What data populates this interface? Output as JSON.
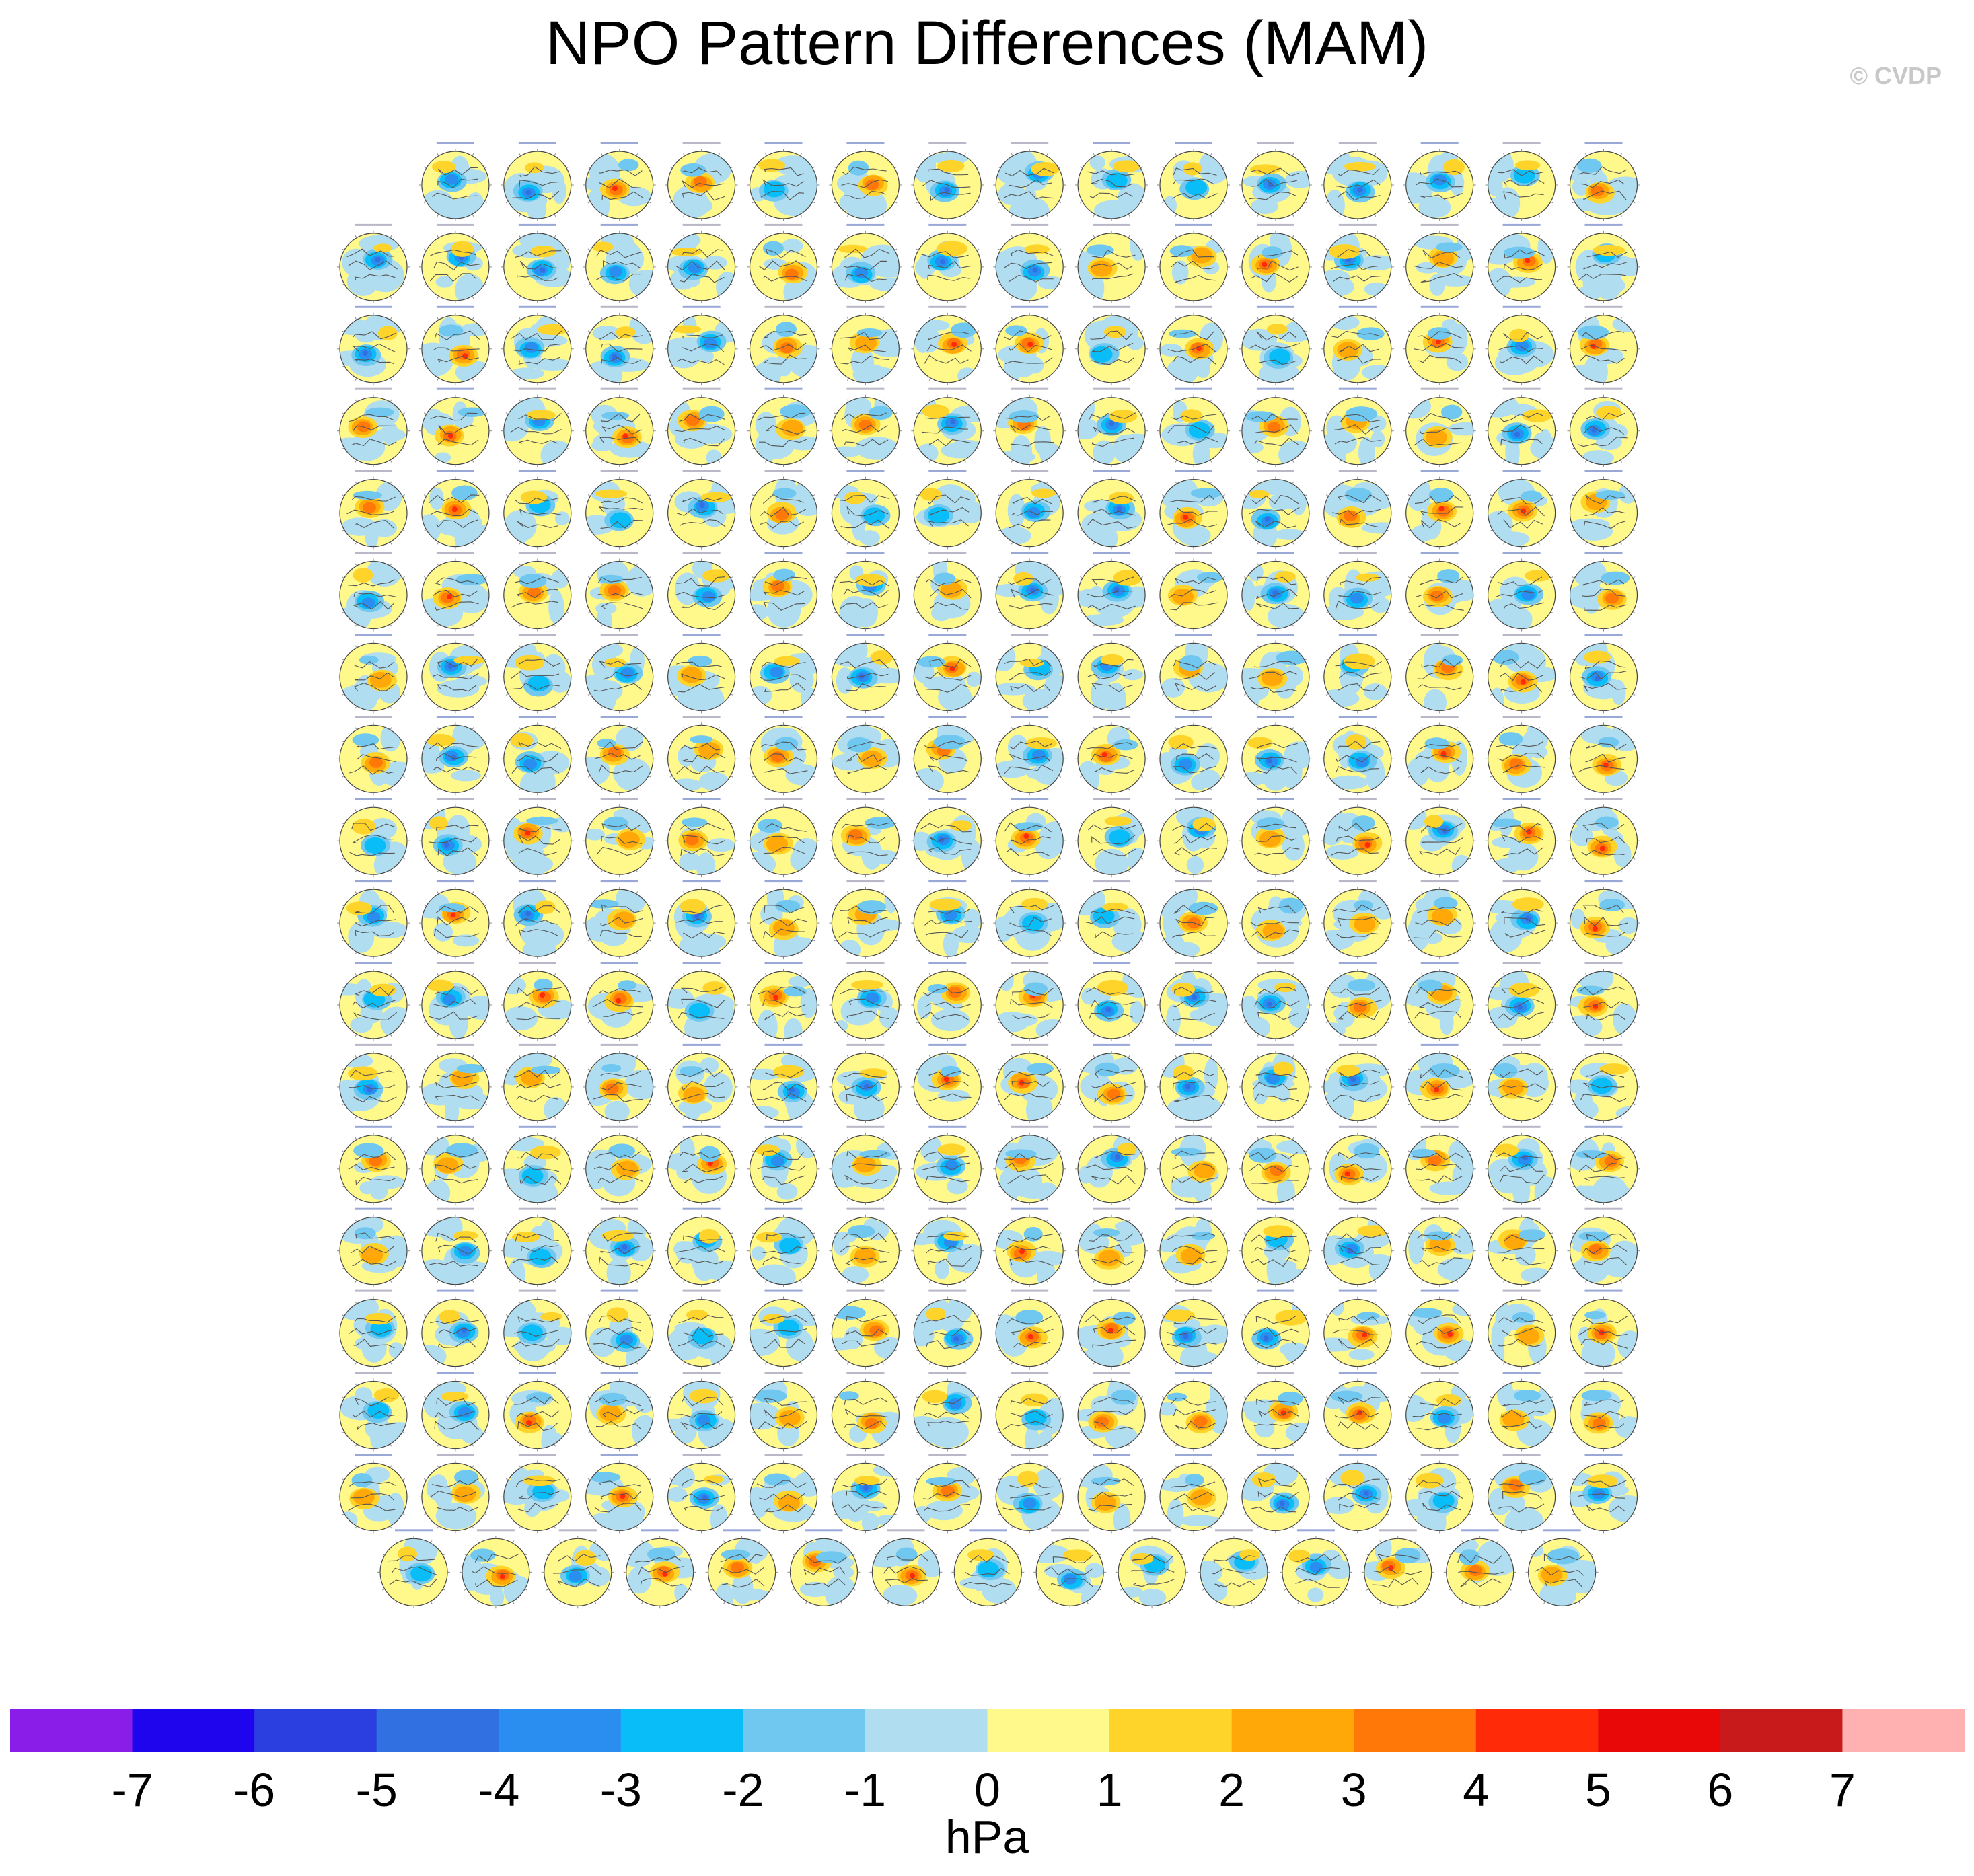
{
  "title": "NPO Pattern Differences (MAM)",
  "copyright": "© CVDP",
  "chart_data": {
    "type": "heatmap",
    "title": "NPO Pattern Differences (MAM)",
    "description_units": "hPa",
    "colorbar": {
      "label": "hPa",
      "levels": [
        -7,
        -6,
        -5,
        -4,
        -3,
        -2,
        -1,
        0,
        1,
        2,
        3,
        4,
        5,
        6,
        7
      ],
      "tick_labels": [
        "-7",
        "-6",
        "-5",
        "-4",
        "-3",
        "-2",
        "-1",
        "0",
        "1",
        "2",
        "3",
        "4",
        "5",
        "6",
        "7"
      ],
      "colors": [
        "#8a1ee8",
        "#1e05ee",
        "#2b3ee0",
        "#3070e0",
        "#2a8ef0",
        "#08bdf8",
        "#70c8f0",
        "#b0ddf0",
        "#fff88a",
        "#ffd42a",
        "#ffa808",
        "#ff7808",
        "#ff2a08",
        "#e80808",
        "#c81a1a",
        "#ffb0b0"
      ]
    },
    "panel_grid": {
      "rows_full": 17,
      "cols_full": 16,
      "first_row_panels": 15,
      "last_row_panels": 15,
      "map_projection": "north polar stereographic"
    }
  }
}
